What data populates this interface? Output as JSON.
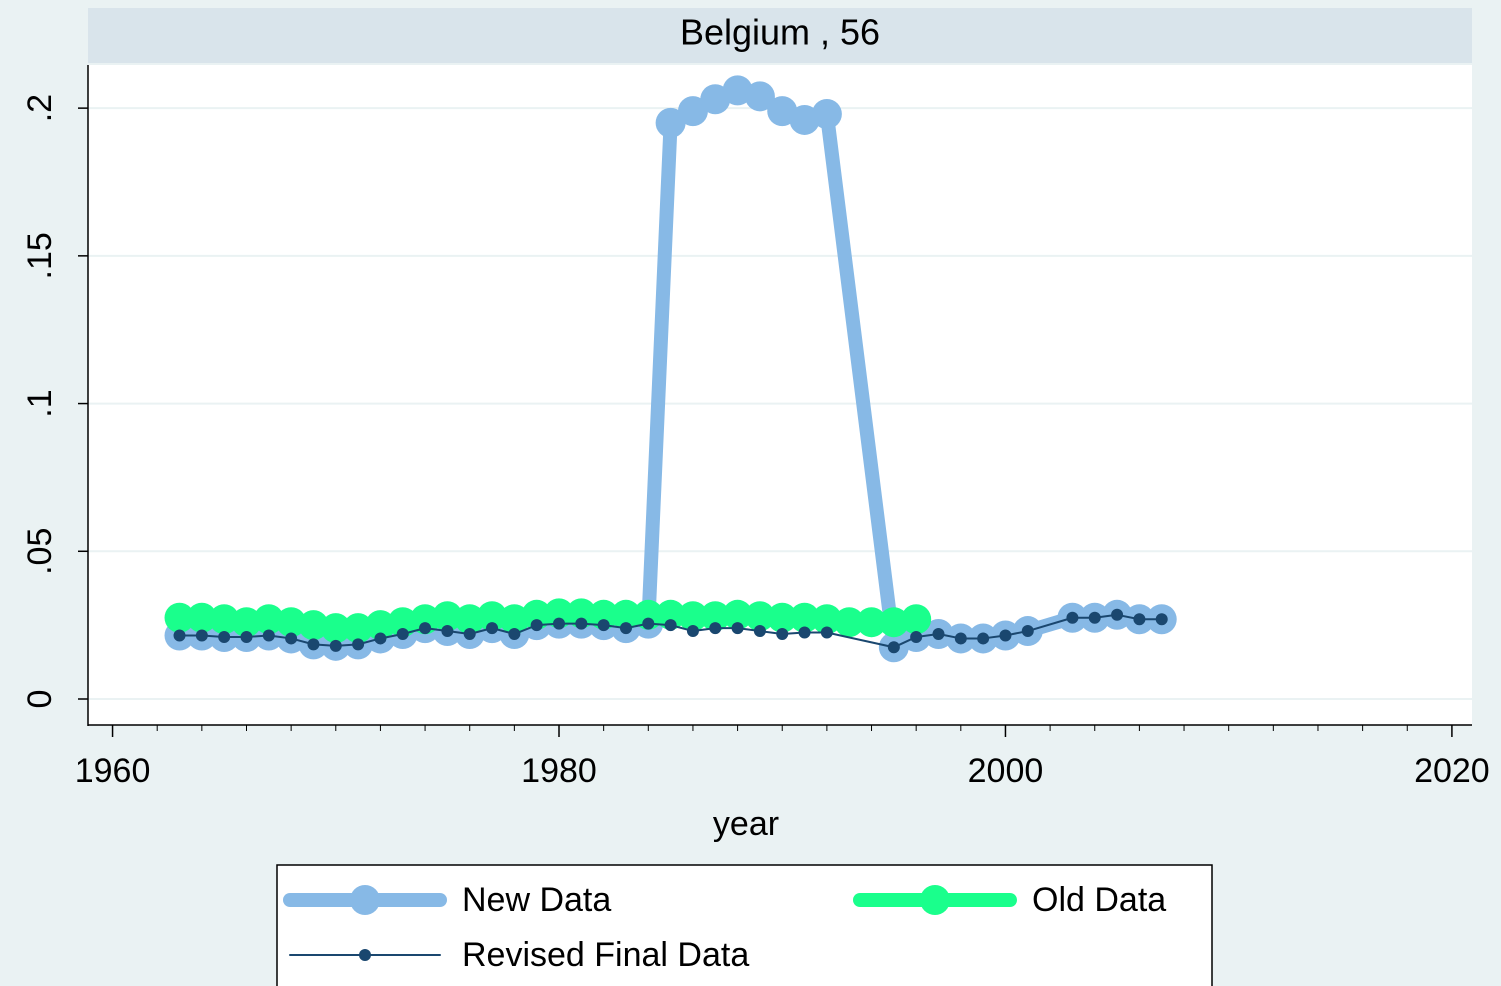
{
  "chart_data": {
    "type": "line",
    "title": "Belgium , 56",
    "xlabel": "year",
    "xlim": [
      1958.9,
      2020.9
    ],
    "xticks": [
      1960,
      1980,
      2000,
      2020
    ],
    "ylim": [
      -0.0088,
      0.2146
    ],
    "yticks": [
      0,
      {
        "value": 0.05,
        "label": ".05"
      },
      {
        "value": 0.1,
        "label": ".1"
      },
      {
        "value": 0.15,
        "label": ".15"
      },
      {
        "value": 0.2,
        "label": ".2"
      }
    ],
    "grid": true,
    "series": [
      {
        "name": "New Data",
        "color": "#87b9e6",
        "x": [
          1963,
          1964,
          1965,
          1966,
          1967,
          1968,
          1969,
          1970,
          1971,
          1972,
          1973,
          1974,
          1975,
          1976,
          1977,
          1978,
          1979,
          1980,
          1981,
          1982,
          1983,
          1984,
          1985,
          1986,
          1987,
          1988,
          1989,
          1990,
          1991,
          1992,
          1995,
          1996,
          1997,
          1998,
          1999,
          2000,
          2001,
          2003,
          2004,
          2005,
          2006,
          2007
        ],
        "values": [
          0.0215,
          0.0215,
          0.021,
          0.021,
          0.0215,
          0.0205,
          0.0185,
          0.018,
          0.0185,
          0.0205,
          0.022,
          0.024,
          0.023,
          0.022,
          0.024,
          0.022,
          0.025,
          0.0255,
          0.0255,
          0.025,
          0.024,
          0.0255,
          0.195,
          0.199,
          0.203,
          0.206,
          0.204,
          0.199,
          0.196,
          0.198,
          0.0175,
          0.021,
          0.022,
          0.0205,
          0.0205,
          0.0215,
          0.023,
          0.0275,
          0.0275,
          0.0285,
          0.027,
          0.027
        ]
      },
      {
        "name": "Old Data",
        "color": "#1aff8c",
        "x": [
          1963,
          1964,
          1965,
          1966,
          1967,
          1968,
          1969,
          1970,
          1971,
          1972,
          1973,
          1974,
          1975,
          1976,
          1977,
          1978,
          1979,
          1980,
          1981,
          1982,
          1983,
          1984,
          1985,
          1986,
          1987,
          1988,
          1989,
          1990,
          1991,
          1992,
          1993,
          1994,
          1995,
          1996
        ],
        "values": [
          0.0275,
          0.0275,
          0.027,
          0.026,
          0.027,
          0.026,
          0.025,
          0.024,
          0.024,
          0.025,
          0.026,
          0.027,
          0.028,
          0.027,
          0.028,
          0.027,
          0.0285,
          0.029,
          0.029,
          0.0285,
          0.0285,
          0.0285,
          0.0285,
          0.028,
          0.028,
          0.0285,
          0.028,
          0.0275,
          0.0275,
          0.027,
          0.026,
          0.026,
          0.026,
          0.027
        ]
      },
      {
        "name": "Revised Final Data",
        "color": "#1a476f",
        "x": [
          1963,
          1964,
          1965,
          1966,
          1967,
          1968,
          1969,
          1970,
          1971,
          1972,
          1973,
          1974,
          1975,
          1976,
          1977,
          1978,
          1979,
          1980,
          1981,
          1982,
          1983,
          1984,
          1985,
          1986,
          1987,
          1988,
          1989,
          1990,
          1991,
          1992,
          1995,
          1996,
          1997,
          1998,
          1999,
          2000,
          2001,
          2003,
          2004,
          2005,
          2006,
          2007
        ],
        "values": [
          0.0215,
          0.0215,
          0.021,
          0.021,
          0.0215,
          0.0205,
          0.0185,
          0.018,
          0.0185,
          0.0205,
          0.022,
          0.024,
          0.023,
          0.022,
          0.024,
          0.022,
          0.025,
          0.0255,
          0.0255,
          0.025,
          0.024,
          0.0255,
          0.025,
          0.023,
          0.024,
          0.024,
          0.023,
          0.022,
          0.0225,
          0.0225,
          0.0175,
          0.021,
          0.022,
          0.0205,
          0.0205,
          0.0215,
          0.023,
          0.0275,
          0.0275,
          0.0285,
          0.027,
          0.027
        ]
      }
    ]
  }
}
